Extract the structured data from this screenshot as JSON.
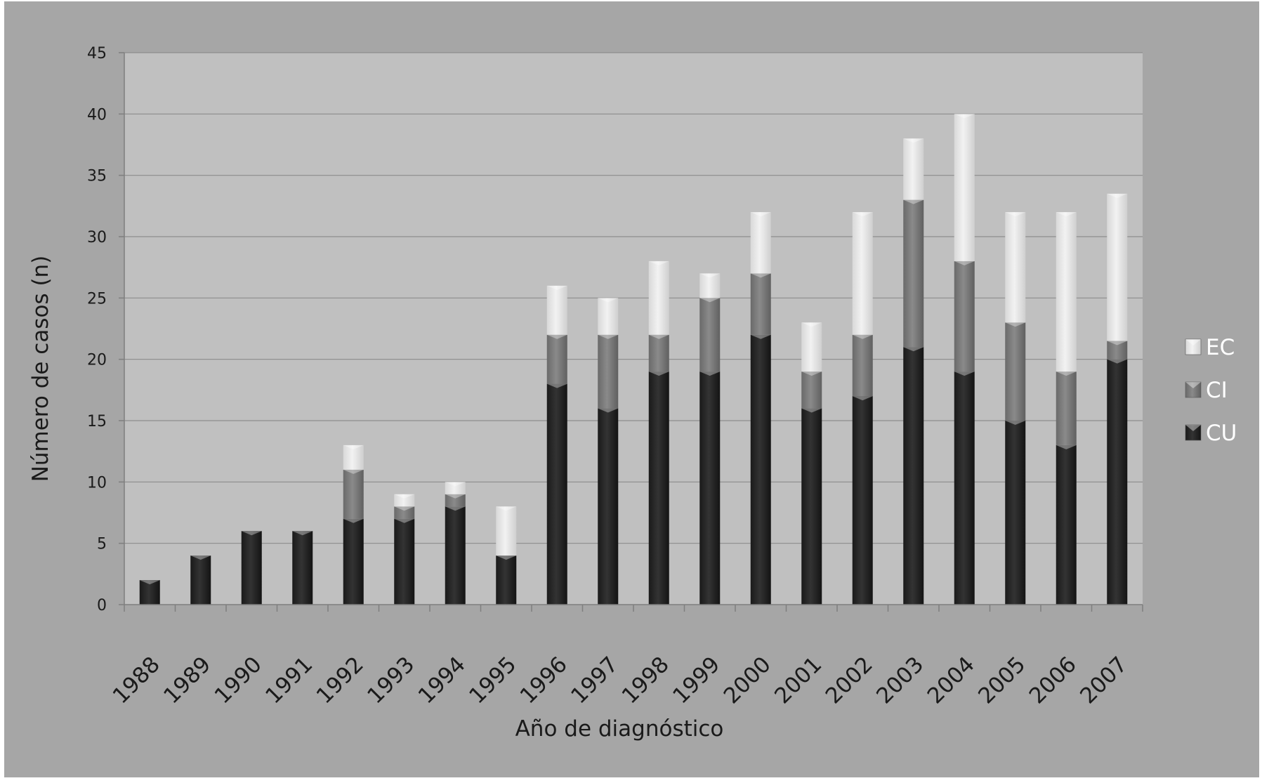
{
  "chart_data": {
    "type": "bar",
    "stacked": true,
    "categories": [
      "1988",
      "1989",
      "1990",
      "1991",
      "1992",
      "1993",
      "1994",
      "1995",
      "1996",
      "1997",
      "1998",
      "1999",
      "2000",
      "2001",
      "2002",
      "2003",
      "2004",
      "2005",
      "2006",
      "2007"
    ],
    "series": [
      {
        "name": "CU",
        "color": "#262626",
        "values": [
          2,
          4,
          6,
          6,
          7,
          7,
          8,
          4,
          18,
          16,
          19,
          19,
          22,
          16,
          17,
          21,
          19,
          15,
          13,
          20
        ]
      },
      {
        "name": "CI",
        "color": "#7a7a7a",
        "values": [
          0,
          0,
          0,
          0,
          4,
          1,
          1,
          0,
          4,
          6,
          3,
          6,
          5,
          3,
          5,
          12,
          9,
          8,
          6,
          1.5
        ]
      },
      {
        "name": "EC",
        "color": "#e4e4e4",
        "values": [
          0,
          0,
          0,
          0,
          2,
          1,
          1,
          4,
          4,
          3,
          6,
          2,
          5,
          4,
          10,
          5,
          12,
          9,
          13,
          12
        ]
      }
    ],
    "xlabel": "Año de diagnóstico",
    "ylabel": "Número de casos (n)",
    "ylim": [
      0,
      45
    ],
    "yticks": [
      0,
      5,
      10,
      15,
      20,
      25,
      30,
      35,
      40,
      45
    ],
    "grid": true,
    "legend_position": "right",
    "legend_order": [
      "EC",
      "CI",
      "CU"
    ]
  },
  "colors": {
    "outer_background": "#a6a6a6",
    "plot_background": "#c0c0c0",
    "gridline": "#8c8c8c",
    "axis_text": "#1a1a1a"
  }
}
